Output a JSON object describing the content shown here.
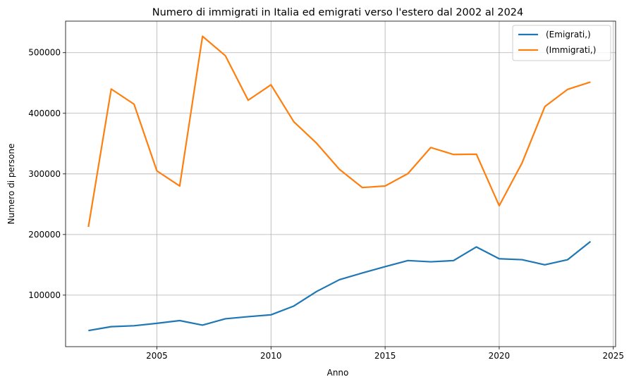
{
  "chart_data": {
    "type": "line",
    "title": "Numero di immigrati in Italia ed emigrati verso l'estero dal 2002 al 2024",
    "xlabel": "Anno",
    "ylabel": "Numero di persone",
    "xlim": [
      2001.0,
      2025.1
    ],
    "ylim": [
      15000,
      552000
    ],
    "xticks": [
      2005,
      2010,
      2015,
      2020,
      2025
    ],
    "yticks": [
      100000,
      200000,
      300000,
      400000,
      500000
    ],
    "grid": true,
    "legend_position": "top-right",
    "x": [
      2002,
      2003,
      2004,
      2005,
      2006,
      2007,
      2008,
      2009,
      2010,
      2011,
      2012,
      2013,
      2014,
      2015,
      2016,
      2017,
      2018,
      2019,
      2020,
      2021,
      2022,
      2023,
      2024
    ],
    "series": [
      {
        "name": "(Emigrati,)",
        "color": "#1f77b4",
        "values": [
          41500,
          48000,
          49500,
          53500,
          58000,
          50500,
          61000,
          64500,
          67500,
          82000,
          106000,
          125500,
          136500,
          147000,
          157000,
          155000,
          157000,
          179500,
          160000,
          158500,
          150000,
          158500,
          188500
        ]
      },
      {
        "name": "(Immigrati,)",
        "color": "#ff7f0e",
        "values": [
          212500,
          440000,
          415000,
          305000,
          280000,
          527000,
          495000,
          421500,
          447000,
          386000,
          350500,
          307500,
          277500,
          280000,
          300500,
          343500,
          332000,
          332500,
          247500,
          318000,
          411000,
          439500,
          451500
        ]
      }
    ]
  }
}
